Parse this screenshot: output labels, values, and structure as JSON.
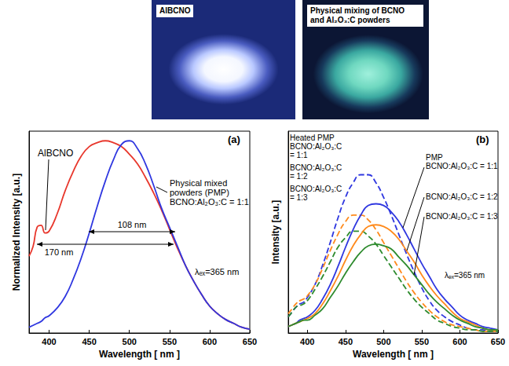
{
  "photos": [
    {
      "label": "AlBCNO"
    },
    {
      "label": "Physical mixing of BCNO and Al₂O₃:C powders"
    }
  ],
  "chart_data": [
    {
      "type": "line",
      "panel_label": "(a)",
      "x_label": "Wavelength [ nm ]",
      "y_label": "Normalized Intensity [a.u.]",
      "x": [
        375,
        380,
        385,
        390,
        395,
        400,
        410,
        420,
        430,
        440,
        450,
        460,
        470,
        480,
        490,
        500,
        510,
        520,
        530,
        540,
        550,
        560,
        570,
        580,
        590,
        600,
        610,
        620,
        630,
        640,
        650
      ],
      "xlim": [
        375,
        650
      ],
      "xticks": [
        400,
        450,
        500,
        550,
        600,
        650
      ],
      "ylim": [
        0,
        1.05
      ],
      "yticks": [],
      "tick_labels": "x",
      "grid": false,
      "series": [
        {
          "color": "#e8372c",
          "line_style": "solid",
          "values": [
            0.4,
            0.45,
            0.55,
            0.56,
            0.52,
            0.53,
            0.62,
            0.74,
            0.84,
            0.92,
            0.97,
            0.99,
            1.0,
            0.99,
            0.97,
            0.93,
            0.88,
            0.81,
            0.73,
            0.64,
            0.54,
            0.44,
            0.35,
            0.27,
            0.2,
            0.14,
            0.1,
            0.07,
            0.05,
            0.03,
            0.02
          ]
        },
        {
          "color": "#2f37e0",
          "line_style": "solid",
          "values": [
            0.03,
            0.04,
            0.05,
            0.06,
            0.08,
            0.09,
            0.13,
            0.19,
            0.28,
            0.39,
            0.52,
            0.66,
            0.79,
            0.9,
            0.98,
            1.0,
            0.96,
            0.88,
            0.77,
            0.65,
            0.55,
            0.45,
            0.35,
            0.27,
            0.2,
            0.14,
            0.1,
            0.07,
            0.05,
            0.03,
            0.02
          ]
        }
      ],
      "annotations": [
        {
          "text": [
            "AlBCNO"
          ]
        },
        {
          "text": [
            "Physical mixed",
            "powders (PMP)",
            "BCNO:Al₂O₃:C = 1:1"
          ]
        },
        {
          "text": [
            "108 nm"
          ]
        },
        {
          "text": [
            "170 nm"
          ]
        },
        {
          "text": [
            "λₑₓ=365 nm"
          ]
        }
      ]
    },
    {
      "type": "line",
      "panel_label": "(b)",
      "x_label": "Wavelength [ nm ]",
      "y_label": "Intensity [a.u.]",
      "x": [
        375,
        380,
        385,
        390,
        395,
        400,
        410,
        420,
        430,
        440,
        450,
        460,
        470,
        480,
        490,
        500,
        510,
        520,
        530,
        540,
        550,
        560,
        570,
        580,
        590,
        600,
        610,
        620,
        630,
        640,
        650
      ],
      "xlim": [
        375,
        650
      ],
      "xticks": [
        400,
        450,
        500,
        550,
        600,
        650
      ],
      "ylim": [
        0,
        1.25
      ],
      "yticks": [],
      "tick_labels": "x",
      "grid": false,
      "series": [
        {
          "color": "#2f37e0",
          "line_style": "dashed",
          "values": [
            0.1,
            0.13,
            0.16,
            0.18,
            0.19,
            0.22,
            0.3,
            0.42,
            0.56,
            0.71,
            0.84,
            0.93,
            0.98,
            0.98,
            0.93,
            0.84,
            0.73,
            0.61,
            0.49,
            0.38,
            0.28,
            0.2,
            0.14,
            0.1,
            0.07,
            0.05,
            0.03,
            0.02,
            0.02,
            0.01,
            0.01
          ]
        },
        {
          "color": "#ff8a1c",
          "line_style": "dashed",
          "values": [
            0.12,
            0.15,
            0.18,
            0.2,
            0.21,
            0.23,
            0.3,
            0.4,
            0.51,
            0.61,
            0.69,
            0.73,
            0.73,
            0.7,
            0.64,
            0.56,
            0.48,
            0.4,
            0.32,
            0.25,
            0.19,
            0.14,
            0.1,
            0.07,
            0.05,
            0.04,
            0.03,
            0.02,
            0.01,
            0.01,
            0.01
          ]
        },
        {
          "color": "#2e8b2e",
          "line_style": "dashed",
          "values": [
            0.1,
            0.13,
            0.16,
            0.17,
            0.18,
            0.2,
            0.27,
            0.35,
            0.44,
            0.53,
            0.59,
            0.63,
            0.63,
            0.6,
            0.55,
            0.48,
            0.41,
            0.34,
            0.27,
            0.21,
            0.16,
            0.12,
            0.08,
            0.06,
            0.04,
            0.03,
            0.02,
            0.02,
            0.01,
            0.01,
            0.01
          ]
        },
        {
          "color": "#2f37e0",
          "line_style": "solid",
          "values": [
            0.04,
            0.05,
            0.06,
            0.08,
            0.09,
            0.1,
            0.14,
            0.21,
            0.3,
            0.41,
            0.53,
            0.64,
            0.73,
            0.79,
            0.8,
            0.79,
            0.75,
            0.69,
            0.61,
            0.52,
            0.43,
            0.35,
            0.27,
            0.21,
            0.16,
            0.11,
            0.08,
            0.06,
            0.04,
            0.03,
            0.02
          ]
        },
        {
          "color": "#ff8a1c",
          "line_style": "solid",
          "values": [
            0.04,
            0.05,
            0.06,
            0.07,
            0.08,
            0.09,
            0.12,
            0.18,
            0.26,
            0.35,
            0.45,
            0.54,
            0.61,
            0.66,
            0.67,
            0.66,
            0.63,
            0.58,
            0.51,
            0.44,
            0.36,
            0.29,
            0.23,
            0.18,
            0.13,
            0.09,
            0.07,
            0.05,
            0.03,
            0.02,
            0.02
          ]
        },
        {
          "color": "#2e8b2e",
          "line_style": "solid",
          "values": [
            0.04,
            0.05,
            0.06,
            0.07,
            0.08,
            0.08,
            0.11,
            0.15,
            0.22,
            0.29,
            0.37,
            0.44,
            0.5,
            0.54,
            0.55,
            0.54,
            0.52,
            0.47,
            0.42,
            0.36,
            0.3,
            0.24,
            0.19,
            0.15,
            0.11,
            0.08,
            0.06,
            0.04,
            0.03,
            0.02,
            0.02
          ]
        }
      ],
      "annotations": [
        {
          "text": [
            "Heated PMP",
            "BCNO:Al₂O₃:C",
            "= 1:1"
          ]
        },
        {
          "text": [
            "BCNO:Al₂O₃:C",
            "= 1:2"
          ]
        },
        {
          "text": [
            "BCNO:Al₂O₃:C",
            "= 1:3"
          ]
        },
        {
          "text": [
            "PMP",
            "BCNO:Al₂O₃:C = 1:1"
          ]
        },
        {
          "text": [
            "BCNO:Al₂O₃:C = 1:2"
          ]
        },
        {
          "text": [
            "BCNO:Al₂O₃:C = 1:3"
          ]
        },
        {
          "text": [
            "λₑₓ=365 nm"
          ]
        }
      ]
    }
  ]
}
